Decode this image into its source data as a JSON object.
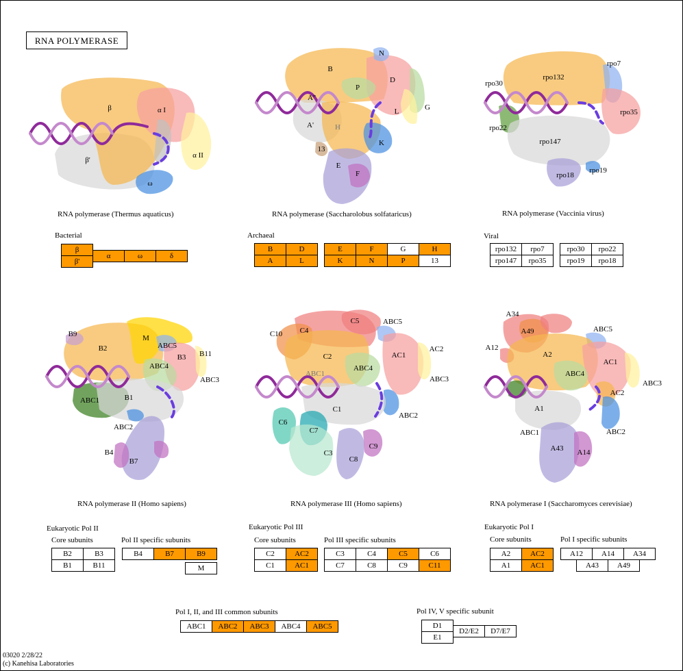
{
  "title": "RNA POLYMERASE",
  "footer": {
    "line1": "03020 2/28/22",
    "line2": "(c) Kanehisa Laboratories"
  },
  "colors": {
    "highlight": "#ff9900",
    "dna": "#8f2a9a",
    "loop": "#6a3de0"
  },
  "structures": [
    {
      "caption": "RNA polymerase (Thermus aquaticus)",
      "labels": [
        "β",
        "α I",
        "β'",
        "α II",
        "ω"
      ]
    },
    {
      "caption": "RNA polymerase (Saccharolobus solfataricus)",
      "labels": [
        "B",
        "N",
        "D",
        "P",
        "A''",
        "G",
        "L",
        "A'",
        "H",
        "K",
        "13",
        "E",
        "F"
      ]
    },
    {
      "caption": "RNA polymerase (Vaccinia virus)",
      "labels": [
        "rpo132",
        "rpo7",
        "rpo30",
        "rpo35",
        "rpo22",
        "rpo147",
        "rpo19",
        "rpo18"
      ]
    },
    {
      "caption": "RNA polymerase II (Homo sapiens)",
      "labels": [
        "B9",
        "B2",
        "M",
        "ABC5",
        "B3",
        "B11",
        "ABC4",
        "ABC3",
        "ABC1",
        "B1",
        "ABC2",
        "B4",
        "B7"
      ]
    },
    {
      "caption": "RNA polymerase III (Homo sapiens)",
      "labels": [
        "C5",
        "ABC5",
        "C10",
        "C4",
        "C2",
        "AC1",
        "AC2",
        "ABC1",
        "ABC4",
        "ABC3",
        "C1",
        "ABC2",
        "C6",
        "C7",
        "C9",
        "C3",
        "C8"
      ]
    },
    {
      "caption": "RNA polymerase I (Saccharomyces cerevisiae)",
      "labels": [
        "A34",
        "A49",
        "ABC5",
        "A12",
        "A2",
        "AC1",
        "ABC4",
        "ABC3",
        "AC2",
        "A1",
        "ABC1",
        "ABC2",
        "A43",
        "A14"
      ]
    }
  ],
  "groups": {
    "bacterial": "Bacterial",
    "archaeal": "Archaeal",
    "viral": "Viral",
    "pol2": "Eukaryotic Pol II",
    "pol3": "Eukaryotic Pol III",
    "pol1": "Eukaryotic Pol I",
    "core": "Core subunits",
    "pol2_specific": "Pol II specific subunits",
    "pol3_specific": "Pol III specific subunits",
    "pol1_specific": "Pol I specific subunits",
    "common": "Pol I, II, and III common subunits",
    "pol45": "Pol IV, V specific subunit"
  },
  "tables": {
    "bacterial": [
      {
        "label": "β",
        "hl": true
      },
      {
        "label": "β'",
        "hl": true
      },
      {
        "label": "α",
        "hl": true
      },
      {
        "label": "ω",
        "hl": true
      },
      {
        "label": "δ",
        "hl": true
      }
    ],
    "archaeal": [
      {
        "label": "B",
        "hl": true
      },
      {
        "label": "D",
        "hl": true
      },
      {
        "label": "A",
        "hl": true
      },
      {
        "label": "L",
        "hl": true
      },
      {
        "label": "E",
        "hl": true
      },
      {
        "label": "F",
        "hl": true
      },
      {
        "label": "G",
        "hl": false
      },
      {
        "label": "H",
        "hl": true
      },
      {
        "label": "K",
        "hl": true
      },
      {
        "label": "N",
        "hl": true
      },
      {
        "label": "P",
        "hl": true
      },
      {
        "label": "13",
        "hl": false
      }
    ],
    "viral": [
      {
        "label": "rpo132",
        "hl": false
      },
      {
        "label": "rpo7",
        "hl": false
      },
      {
        "label": "rpo147",
        "hl": false
      },
      {
        "label": "rpo35",
        "hl": false
      },
      {
        "label": "rpo30",
        "hl": false
      },
      {
        "label": "rpo22",
        "hl": false
      },
      {
        "label": "rpo19",
        "hl": false
      },
      {
        "label": "rpo18",
        "hl": false
      }
    ],
    "pol2_core": [
      {
        "label": "B2",
        "hl": false
      },
      {
        "label": "B3",
        "hl": false
      },
      {
        "label": "B1",
        "hl": false
      },
      {
        "label": "B11",
        "hl": false
      }
    ],
    "pol2_specific": [
      {
        "label": "B4",
        "hl": false
      },
      {
        "label": "B7",
        "hl": true
      },
      {
        "label": "B9",
        "hl": true
      },
      {
        "label": "M",
        "hl": false
      }
    ],
    "pol3_core": [
      {
        "label": "C2",
        "hl": false
      },
      {
        "label": "AC2",
        "hl": true
      },
      {
        "label": "C1",
        "hl": false
      },
      {
        "label": "AC1",
        "hl": true
      }
    ],
    "pol3_specific": [
      {
        "label": "C3",
        "hl": false
      },
      {
        "label": "C4",
        "hl": false
      },
      {
        "label": "C5",
        "hl": true
      },
      {
        "label": "C6",
        "hl": false
      },
      {
        "label": "C7",
        "hl": false
      },
      {
        "label": "C8",
        "hl": false
      },
      {
        "label": "C9",
        "hl": false
      },
      {
        "label": "C11",
        "hl": true
      }
    ],
    "pol1_core": [
      {
        "label": "A2",
        "hl": false
      },
      {
        "label": "AC2",
        "hl": true
      },
      {
        "label": "A1",
        "hl": false
      },
      {
        "label": "AC1",
        "hl": true
      }
    ],
    "pol1_specific": [
      {
        "label": "A12",
        "hl": false
      },
      {
        "label": "A14",
        "hl": false
      },
      {
        "label": "A34",
        "hl": false
      },
      {
        "label": "A43",
        "hl": false
      },
      {
        "label": "A49",
        "hl": false
      }
    ],
    "common": [
      {
        "label": "ABC1",
        "hl": false
      },
      {
        "label": "ABC2",
        "hl": true
      },
      {
        "label": "ABC3",
        "hl": true
      },
      {
        "label": "ABC4",
        "hl": false
      },
      {
        "label": "ABC5",
        "hl": true
      }
    ],
    "pol45": [
      {
        "label": "D1",
        "hl": false
      },
      {
        "label": "E1",
        "hl": false
      },
      {
        "label": "D2/E2",
        "hl": false
      },
      {
        "label": "D7/E7",
        "hl": false
      }
    ]
  }
}
